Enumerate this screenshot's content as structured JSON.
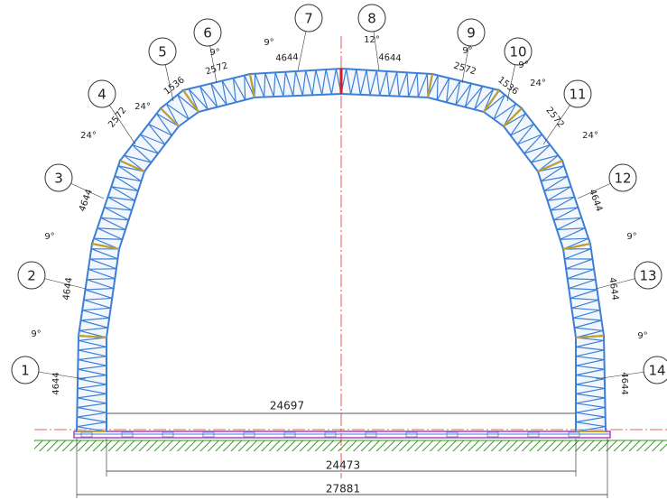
{
  "markers": [
    "1",
    "2",
    "3",
    "4",
    "5",
    "6",
    "7",
    "8",
    "9",
    "10",
    "11",
    "12",
    "13",
    "14"
  ],
  "lengths": [
    "4644",
    "4644",
    "4644",
    "2572",
    "1536",
    "2572",
    "4644",
    "4644",
    "2572",
    "1536",
    "2572",
    "4644",
    "4644",
    "4644"
  ],
  "angles": [
    "9°",
    "9°",
    "24°",
    "24°",
    "9°",
    "9°",
    "12°",
    "9°",
    "9°",
    "24°",
    "24°",
    "9°",
    "9°"
  ],
  "spans": {
    "inner_clear": "24697",
    "base_inner": "24473",
    "base_outer": "27881"
  }
}
